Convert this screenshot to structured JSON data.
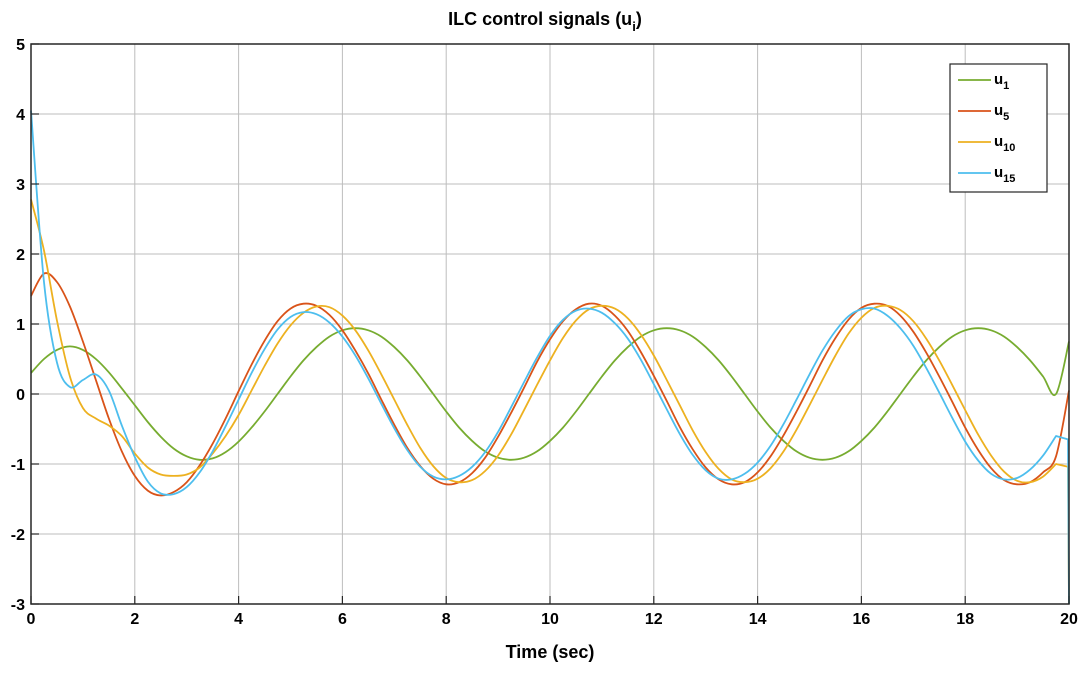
{
  "chart_data": {
    "type": "line",
    "title": "ILC control signals (u",
    "title_subscript": "i",
    "title_close": ")",
    "xlabel": "Time (sec)",
    "ylabel": "",
    "xlim": [
      0,
      20
    ],
    "ylim": [
      -3,
      5
    ],
    "xticks": [
      0,
      2,
      4,
      6,
      8,
      10,
      12,
      14,
      16,
      18,
      20
    ],
    "yticks": [
      -3,
      -2,
      -1,
      0,
      1,
      2,
      3,
      4,
      5
    ],
    "xtick_labels": [
      "0",
      "2",
      "4",
      "6",
      "8",
      "10",
      "12",
      "14",
      "16",
      "18",
      "20"
    ],
    "ytick_labels": [
      "-3",
      "-2",
      "-1",
      "0",
      "1",
      "2",
      "3",
      "4",
      "5"
    ],
    "grid": true,
    "legend_position": "top-right",
    "x": [
      0,
      0.25,
      0.5,
      0.75,
      1,
      1.25,
      1.5,
      1.75,
      2,
      2.25,
      2.5,
      2.75,
      3,
      3.25,
      3.5,
      3.75,
      4,
      4.25,
      4.5,
      4.75,
      5,
      5.25,
      5.5,
      5.75,
      6,
      6.25,
      6.5,
      6.75,
      7,
      7.25,
      7.5,
      7.75,
      8,
      8.25,
      8.5,
      8.75,
      9,
      9.25,
      9.5,
      9.75,
      10,
      10.25,
      10.5,
      10.75,
      11,
      11.25,
      11.5,
      11.75,
      12,
      12.25,
      12.5,
      12.75,
      13,
      13.25,
      13.5,
      13.75,
      14,
      14.25,
      14.5,
      14.75,
      15,
      15.25,
      15.5,
      15.75,
      16,
      16.25,
      16.5,
      16.75,
      17,
      17.25,
      17.5,
      17.75,
      18,
      18.25,
      18.5,
      18.75,
      19,
      19.25,
      19.5,
      19.75,
      20
    ],
    "series": [
      {
        "name": "u",
        "subscript": "1",
        "color": "#77ac30",
        "values": [
          0.3,
          0.5,
          0.63,
          0.68,
          0.63,
          0.5,
          0.31,
          0.08,
          -0.16,
          -0.4,
          -0.61,
          -0.78,
          -0.89,
          -0.94,
          -0.92,
          -0.83,
          -0.68,
          -0.48,
          -0.25,
          0.0,
          0.25,
          0.48,
          0.67,
          0.82,
          0.91,
          0.94,
          0.91,
          0.82,
          0.67,
          0.48,
          0.25,
          0.0,
          -0.25,
          -0.48,
          -0.67,
          -0.82,
          -0.91,
          -0.94,
          -0.91,
          -0.82,
          -0.67,
          -0.48,
          -0.25,
          0.0,
          0.25,
          0.48,
          0.67,
          0.82,
          0.91,
          0.94,
          0.91,
          0.82,
          0.67,
          0.48,
          0.25,
          0.0,
          -0.25,
          -0.48,
          -0.67,
          -0.82,
          -0.91,
          -0.94,
          -0.91,
          -0.82,
          -0.67,
          -0.48,
          -0.25,
          0.0,
          0.25,
          0.48,
          0.67,
          0.82,
          0.91,
          0.94,
          0.91,
          0.82,
          0.67,
          0.48,
          0.25,
          0.0,
          0.75
        ]
      },
      {
        "name": "u",
        "subscript": "5",
        "color": "#d95319",
        "values": [
          1.4,
          1.72,
          1.6,
          1.25,
          0.75,
          0.2,
          -0.35,
          -0.82,
          -1.17,
          -1.38,
          -1.45,
          -1.4,
          -1.26,
          -1.02,
          -0.71,
          -0.35,
          0.04,
          0.42,
          0.76,
          1.04,
          1.22,
          1.29,
          1.26,
          1.13,
          0.91,
          0.62,
          0.29,
          -0.08,
          -0.44,
          -0.77,
          -1.03,
          -1.21,
          -1.29,
          -1.26,
          -1.13,
          -0.91,
          -0.61,
          -0.27,
          0.09,
          0.46,
          0.78,
          1.04,
          1.21,
          1.29,
          1.26,
          1.12,
          0.9,
          0.6,
          0.26,
          -0.1,
          -0.47,
          -0.79,
          -1.05,
          -1.22,
          -1.29,
          -1.26,
          -1.12,
          -0.89,
          -0.59,
          -0.25,
          0.11,
          0.48,
          0.8,
          1.06,
          1.23,
          1.29,
          1.26,
          1.12,
          0.89,
          0.59,
          0.25,
          -0.11,
          -0.48,
          -0.8,
          -1.06,
          -1.23,
          -1.29,
          -1.26,
          -1.12,
          -0.89,
          0.05
        ]
      },
      {
        "name": "u",
        "subscript": "10",
        "color": "#edb120",
        "values": [
          2.78,
          2.05,
          1.05,
          0.25,
          -0.2,
          -0.35,
          -0.45,
          -0.6,
          -0.85,
          -1.05,
          -1.15,
          -1.17,
          -1.15,
          -1.05,
          -0.85,
          -0.6,
          -0.3,
          0.05,
          0.4,
          0.72,
          0.98,
          1.16,
          1.25,
          1.24,
          1.12,
          0.91,
          0.62,
          0.28,
          -0.08,
          -0.44,
          -0.77,
          -1.03,
          -1.2,
          -1.26,
          -1.23,
          -1.1,
          -0.88,
          -0.58,
          -0.23,
          0.13,
          0.48,
          0.8,
          1.05,
          1.21,
          1.26,
          1.22,
          1.08,
          0.85,
          0.55,
          0.2,
          -0.16,
          -0.52,
          -0.83,
          -1.07,
          -1.22,
          -1.26,
          -1.21,
          -1.06,
          -0.82,
          -0.51,
          -0.16,
          0.2,
          0.55,
          0.86,
          1.09,
          1.23,
          1.26,
          1.2,
          1.04,
          0.79,
          0.48,
          0.13,
          -0.23,
          -0.58,
          -0.88,
          -1.11,
          -1.24,
          -1.26,
          -1.18,
          -1.0,
          -3.0
        ]
      },
      {
        "name": "u",
        "subscript": "15",
        "color": "#4dbeee",
        "values": [
          4.05,
          1.6,
          0.45,
          0.1,
          0.2,
          0.28,
          0.05,
          -0.45,
          -0.9,
          -1.25,
          -1.42,
          -1.43,
          -1.33,
          -1.12,
          -0.82,
          -0.46,
          -0.08,
          0.3,
          0.64,
          0.92,
          1.1,
          1.17,
          1.14,
          1.02,
          0.82,
          0.55,
          0.22,
          -0.14,
          -0.49,
          -0.8,
          -1.04,
          -1.18,
          -1.22,
          -1.17,
          -1.04,
          -0.83,
          -0.54,
          -0.19,
          0.17,
          0.52,
          0.83,
          1.06,
          1.19,
          1.22,
          1.16,
          1.01,
          0.79,
          0.49,
          0.14,
          -0.22,
          -0.57,
          -0.87,
          -1.09,
          -1.21,
          -1.22,
          -1.14,
          -0.98,
          -0.74,
          -0.43,
          -0.08,
          0.28,
          0.62,
          0.9,
          1.11,
          1.21,
          1.22,
          1.12,
          0.94,
          0.69,
          0.37,
          0.02,
          -0.34,
          -0.68,
          -0.95,
          -1.14,
          -1.22,
          -1.2,
          -1.08,
          -0.88,
          -0.6,
          -3.0
        ]
      }
    ]
  }
}
